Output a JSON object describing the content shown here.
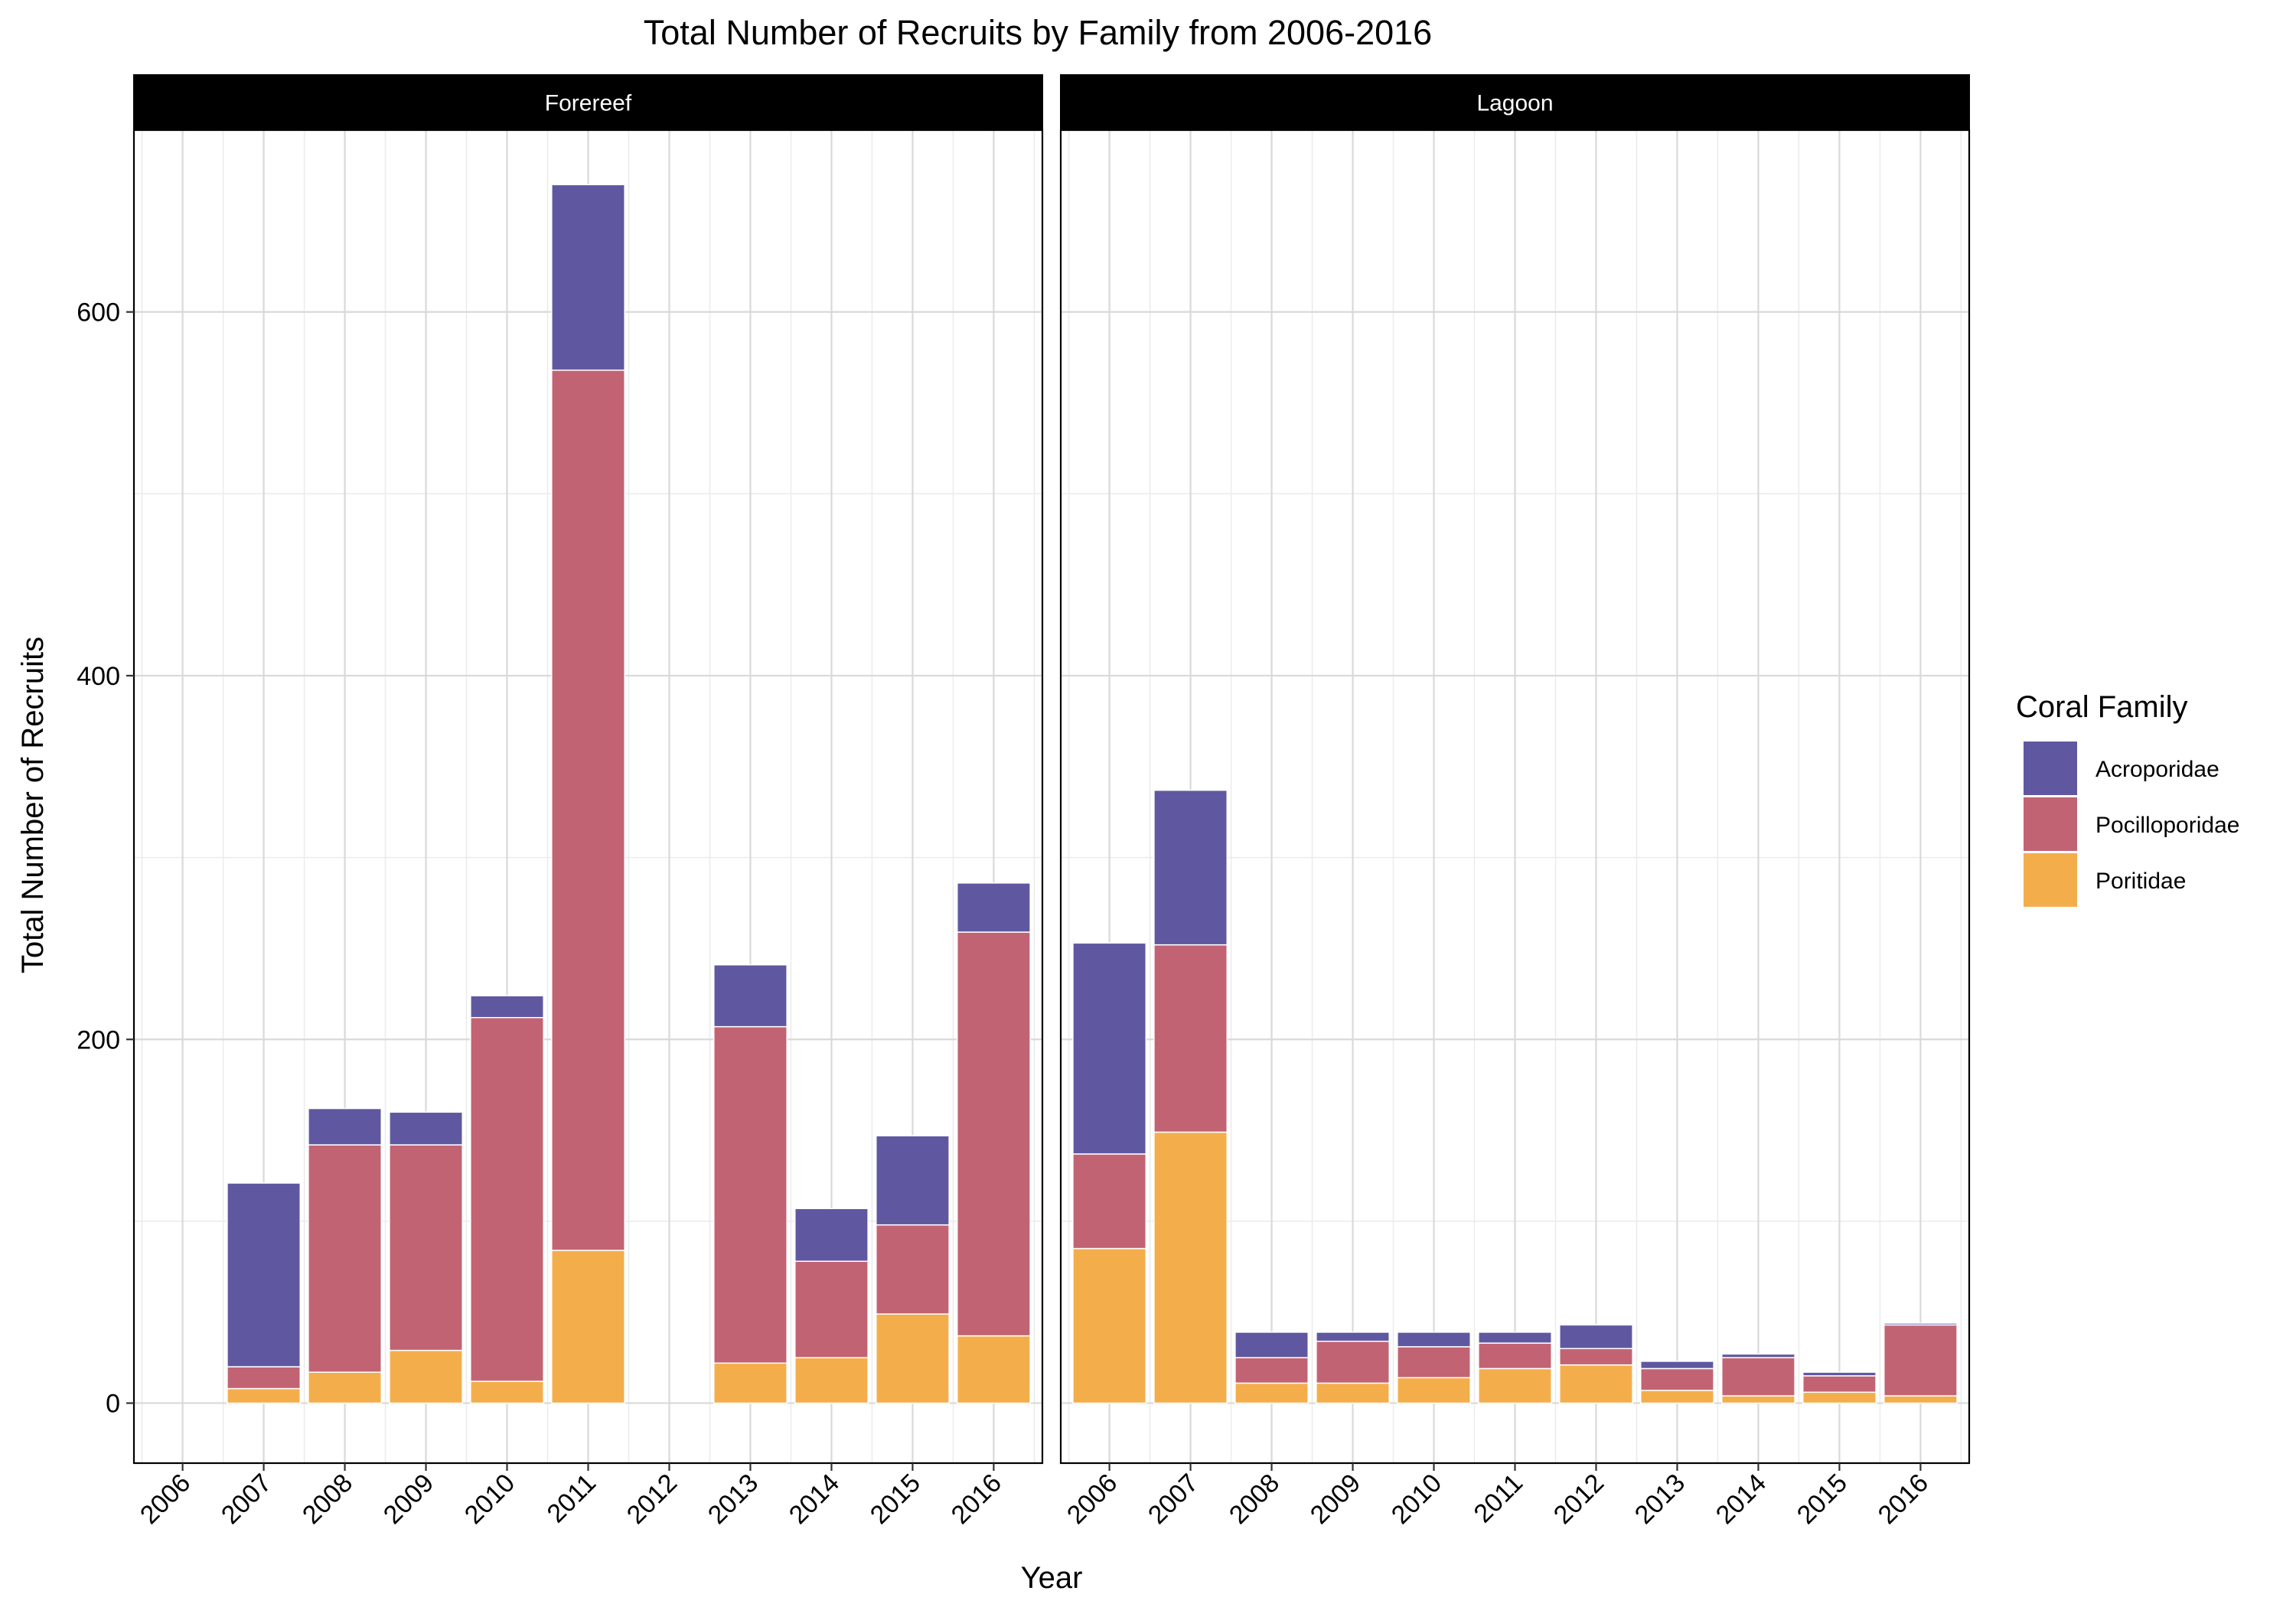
{
  "chart_data": {
    "type": "bar",
    "stacked": true,
    "faceted": true,
    "title": "Total Number of Recruits by Family from 2006-2016",
    "xlabel": "Year",
    "ylabel": "Total Number of Recruits",
    "ylim": [
      -33,
      700
    ],
    "yticks": [
      0,
      200,
      400,
      600
    ],
    "ytick_labels": [
      "0",
      "200",
      "400",
      "600"
    ],
    "grid": true,
    "categories": [
      "2006",
      "2007",
      "2008",
      "2009",
      "2010",
      "2011",
      "2012",
      "2013",
      "2014",
      "2015",
      "2016"
    ],
    "legend": {
      "title": "Coral Family",
      "position": "right",
      "entries": [
        "Acroporidae",
        "Pocilloporidae",
        "Poritidae"
      ]
    },
    "colors": {
      "Acroporidae": "#5F58A0",
      "Pocilloporidae": "#C26373",
      "Poritidae": "#F3AE4B"
    },
    "panels": [
      {
        "label": "Forereef",
        "series": [
          {
            "name": "Poritidae",
            "values": [
              0,
              8,
              17,
              29,
              12,
              84,
              0,
              22,
              25,
              49,
              37
            ]
          },
          {
            "name": "Pocilloporidae",
            "values": [
              0,
              12,
              125,
              113,
              200,
              484,
              0,
              185,
              53,
              49,
              222
            ]
          },
          {
            "name": "Acroporidae",
            "values": [
              0,
              101,
              20,
              18,
              12,
              102,
              0,
              34,
              29,
              49,
              27
            ]
          }
        ]
      },
      {
        "label": "Lagoon",
        "series": [
          {
            "name": "Poritidae",
            "values": [
              85,
              149,
              11,
              11,
              14,
              19,
              21,
              7,
              4,
              6,
              4
            ]
          },
          {
            "name": "Pocilloporidae",
            "values": [
              52,
              103,
              14,
              23,
              17,
              14,
              9,
              12,
              21,
              9,
              39
            ]
          },
          {
            "name": "Acroporidae",
            "values": [
              116,
              85,
              14,
              5,
              8,
              6,
              13,
              4,
              2,
              2,
              1
            ]
          }
        ]
      }
    ]
  }
}
